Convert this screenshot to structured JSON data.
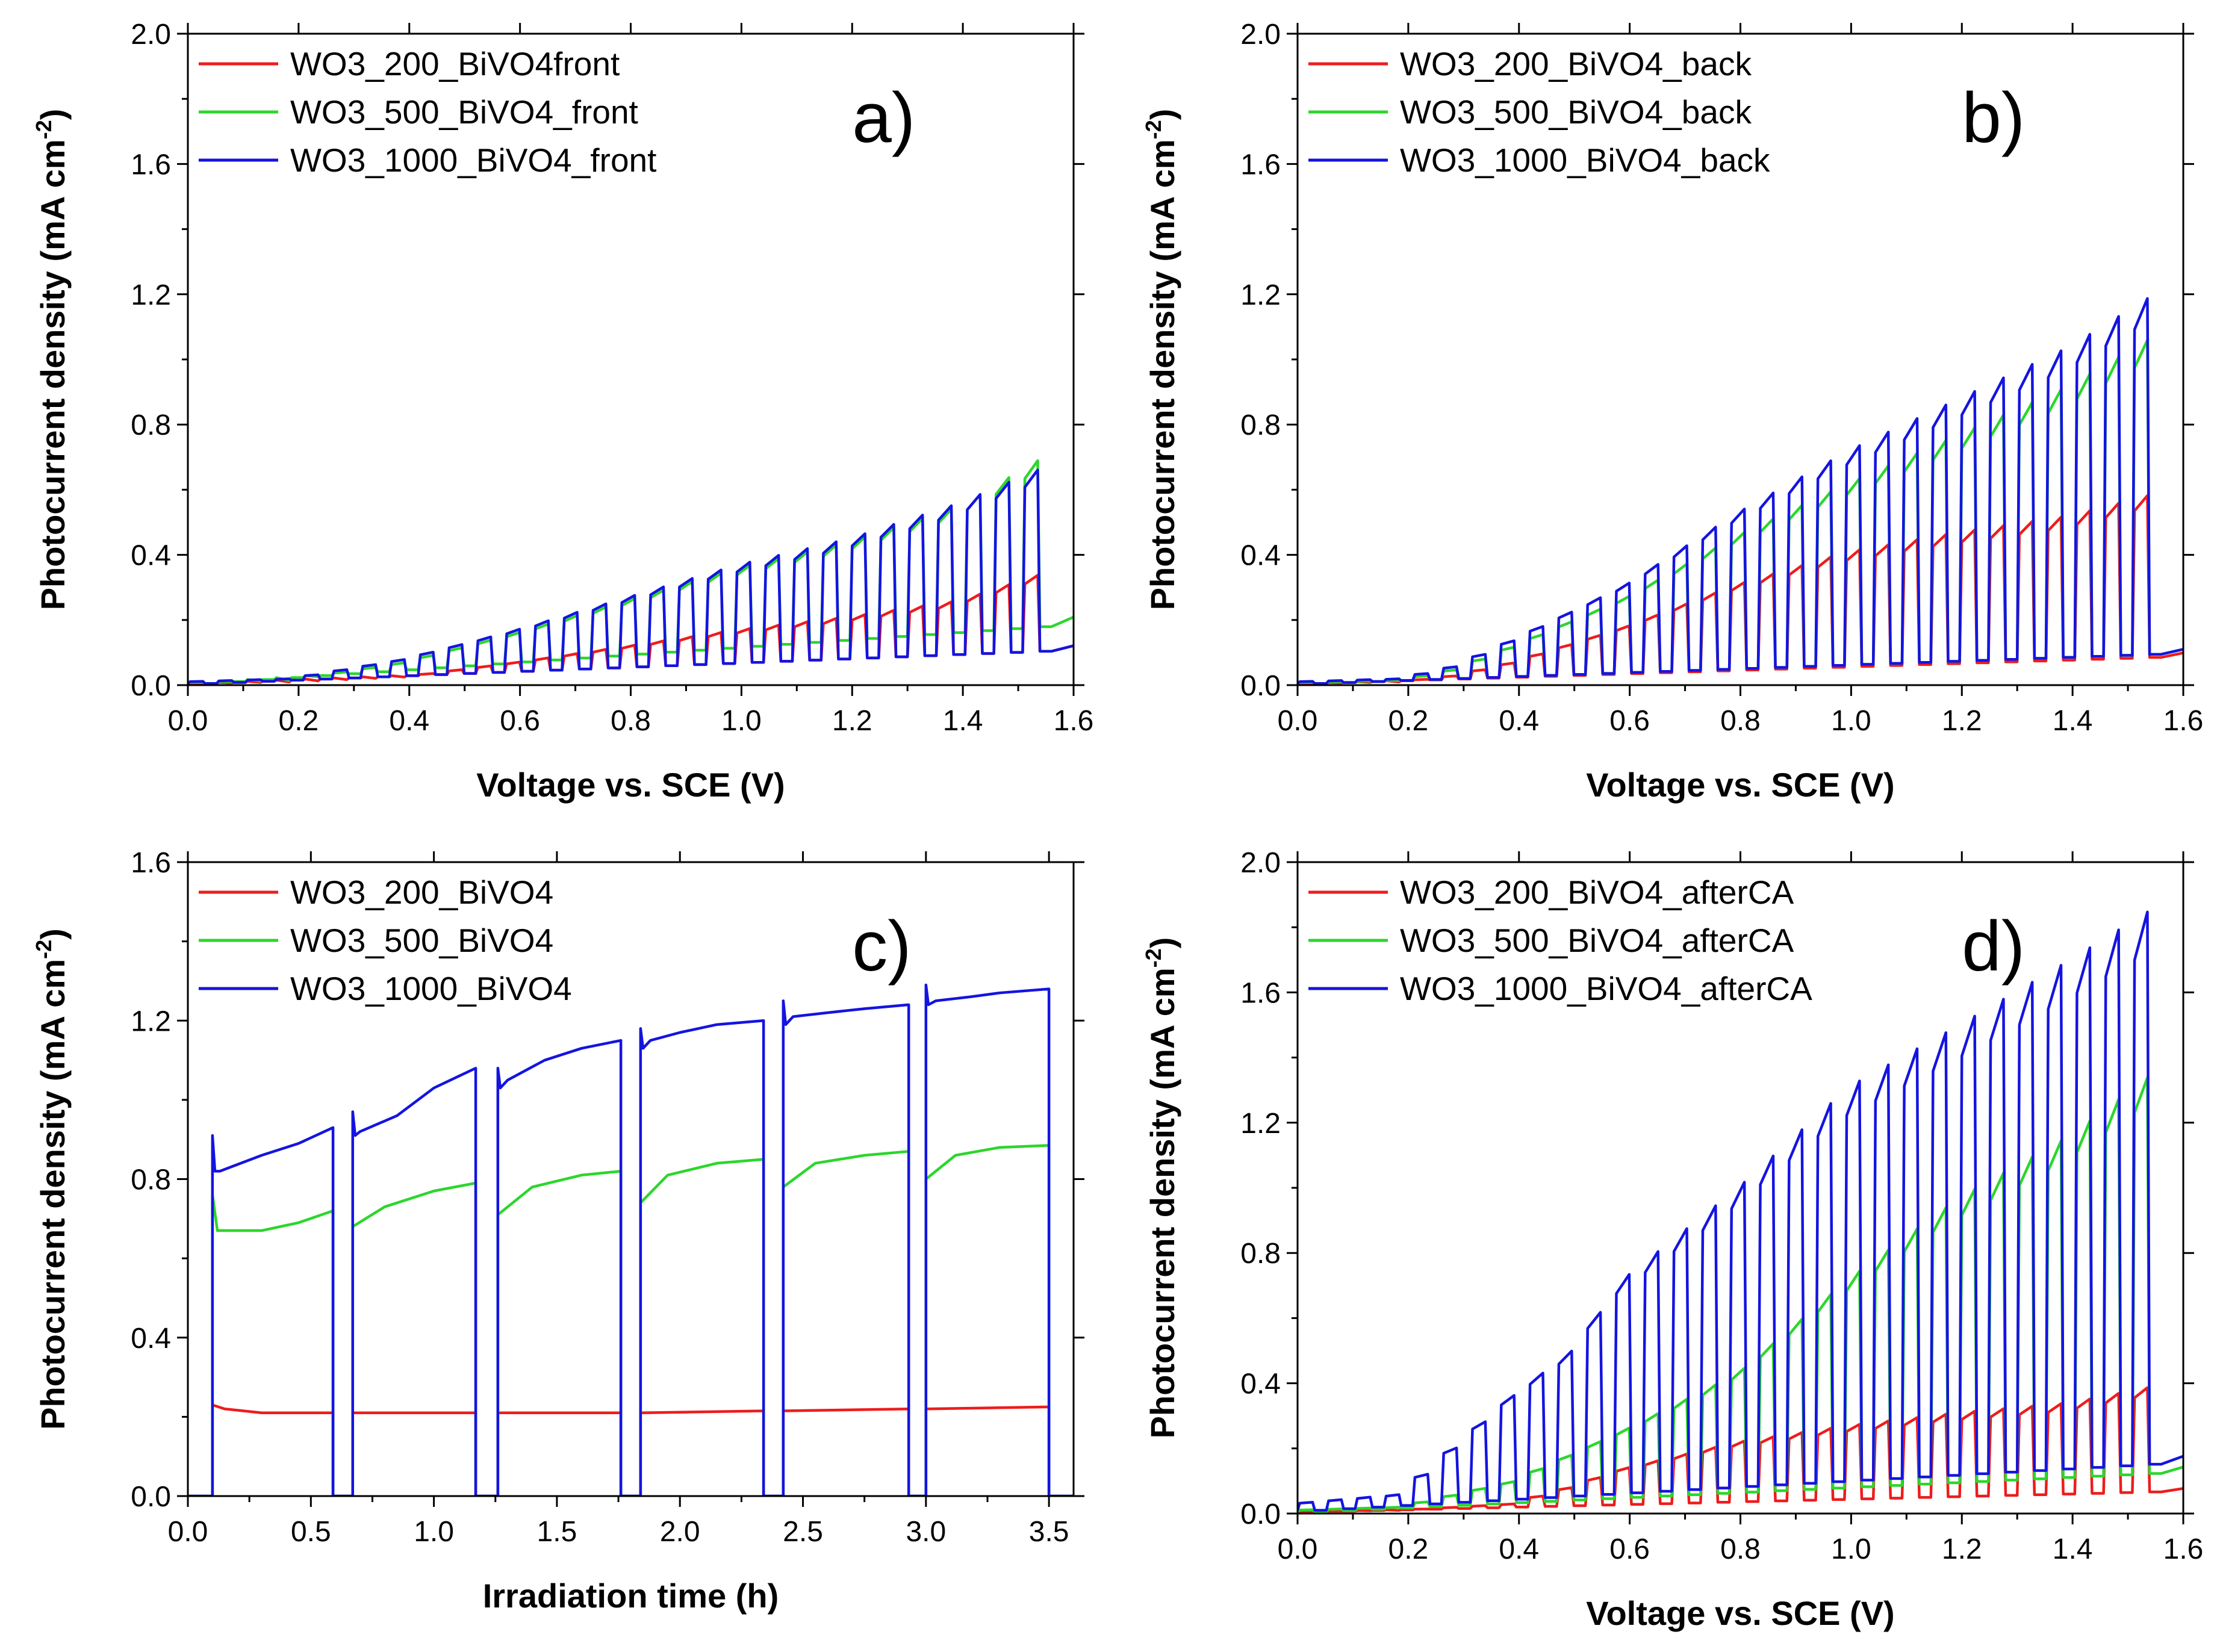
{
  "colors": {
    "red": "#ee1c1c",
    "green": "#2cd62c",
    "blue": "#1414e0",
    "axis": "#000000"
  },
  "chart_data": [
    {
      "id": "a",
      "type": "line",
      "panel_label": "a)",
      "xlabel": "Voltage vs. SCE (V)",
      "ylabel": "Photocurrent density (mA cm",
      "ylabel_sup": "-2",
      "ylabel_close": ")",
      "xlim": [
        0,
        1.6
      ],
      "ylim": [
        0,
        2.0
      ],
      "xticks": [
        0.0,
        0.2,
        0.4,
        0.6,
        0.8,
        1.0,
        1.2,
        1.4,
        1.6
      ],
      "xtick_labels": [
        "0.0",
        "0.2",
        "0.4",
        "0.6",
        "0.8",
        "1.0",
        "1.2",
        "1.4",
        "1.6"
      ],
      "yticks": [
        0.0,
        0.4,
        0.8,
        1.2,
        1.6,
        2.0
      ],
      "ytick_labels": [
        "0.0",
        "0.4",
        "0.8",
        "1.2",
        "1.6",
        "2.0"
      ],
      "legend_position": "top-left",
      "pattern": "chopped",
      "chop": {
        "start": 0.0,
        "period": 0.052,
        "on_fraction": 0.6,
        "end": 1.6
      },
      "series": [
        {
          "name": "WO3_200_BiVO4front",
          "color": "red",
          "envelope": {
            "x": [
              0.0,
              0.2,
              0.4,
              0.6,
              0.8,
              1.0,
              1.2,
              1.4,
              1.58
            ],
            "y": [
              0.005,
              0.01,
              0.025,
              0.07,
              0.12,
              0.17,
              0.21,
              0.26,
              0.36
            ]
          },
          "dark": 0.005,
          "dark_end": 0.11
        },
        {
          "name": "WO3_500_BiVO4_front",
          "color": "green",
          "envelope": {
            "x": [
              0.0,
              0.2,
              0.4,
              0.6,
              0.8,
              1.0,
              1.2,
              1.4,
              1.58
            ],
            "y": [
              0.008,
              0.015,
              0.07,
              0.16,
              0.26,
              0.36,
              0.44,
              0.55,
              0.73
            ]
          },
          "dark": 0.005,
          "dark_end": 0.19
        },
        {
          "name": "WO3_1000_BiVO4_front",
          "color": "blue",
          "envelope": {
            "x": [
              0.0,
              0.2,
              0.4,
              0.6,
              0.8,
              1.0,
              1.2,
              1.4,
              1.58
            ],
            "y": [
              0.01,
              0.02,
              0.08,
              0.17,
              0.27,
              0.37,
              0.45,
              0.56,
              0.69
            ]
          },
          "dark": 0.005,
          "dark_end": 0.11
        }
      ]
    },
    {
      "id": "b",
      "type": "line",
      "panel_label": "b)",
      "xlabel": "Voltage vs. SCE (V)",
      "ylabel": "Photocurrent density (mA cm",
      "ylabel_sup": "-2",
      "ylabel_close": ")",
      "xlim": [
        0,
        1.6
      ],
      "ylim": [
        0,
        2.0
      ],
      "xticks": [
        0.0,
        0.2,
        0.4,
        0.6,
        0.8,
        1.0,
        1.2,
        1.4,
        1.6
      ],
      "xtick_labels": [
        "0.0",
        "0.2",
        "0.4",
        "0.6",
        "0.8",
        "1.0",
        "1.2",
        "1.4",
        "1.6"
      ],
      "yticks": [
        0.0,
        0.4,
        0.8,
        1.2,
        1.6,
        2.0
      ],
      "ytick_labels": [
        "0.0",
        "0.4",
        "0.8",
        "1.2",
        "1.6",
        "2.0"
      ],
      "legend_position": "top-left",
      "pattern": "chopped",
      "chop": {
        "start": 0.0,
        "period": 0.052,
        "on_fraction": 0.6,
        "end": 1.6
      },
      "series": [
        {
          "name": "WO3_200_BiVO4_back",
          "color": "red",
          "envelope": {
            "x": [
              0.0,
              0.2,
              0.3,
              0.4,
              0.6,
              0.8,
              1.0,
              1.2,
              1.4,
              1.58
            ],
            "y": [
              0.005,
              0.01,
              0.03,
              0.07,
              0.18,
              0.31,
              0.41,
              0.47,
              0.52,
              0.6
            ]
          },
          "dark": 0.005,
          "dark_end": 0.09
        },
        {
          "name": "WO3_500_BiVO4_back",
          "color": "green",
          "envelope": {
            "x": [
              0.0,
              0.2,
              0.3,
              0.4,
              0.6,
              0.8,
              1.0,
              1.2,
              1.4,
              1.58
            ],
            "y": [
              0.008,
              0.015,
              0.05,
              0.12,
              0.27,
              0.46,
              0.62,
              0.77,
              0.92,
              1.1
            ]
          },
          "dark": 0.005,
          "dark_end": 0.1
        },
        {
          "name": "WO3_1000_BiVO4_back",
          "color": "blue",
          "envelope": {
            "x": [
              0.0,
              0.2,
              0.3,
              0.4,
              0.6,
              0.8,
              1.0,
              1.2,
              1.4,
              1.58
            ],
            "y": [
              0.01,
              0.02,
              0.06,
              0.14,
              0.31,
              0.53,
              0.72,
              0.88,
              1.04,
              1.23
            ]
          },
          "dark": 0.005,
          "dark_end": 0.1
        }
      ]
    },
    {
      "id": "c",
      "type": "line",
      "panel_label": "c)",
      "xlabel": "Irradiation time (h)",
      "ylabel": "Photocurrent density (mA cm",
      "ylabel_sup": "-2",
      "ylabel_close": ")",
      "xlim": [
        0,
        3.6
      ],
      "ylim": [
        0,
        1.6
      ],
      "xticks": [
        0.0,
        0.5,
        1.0,
        1.5,
        2.0,
        2.5,
        3.0,
        3.5
      ],
      "xtick_labels": [
        "0.0",
        "0.5",
        "1.0",
        "1.5",
        "2.0",
        "2.5",
        "3.0",
        "3.5"
      ],
      "yticks": [
        0.0,
        0.4,
        0.8,
        1.2,
        1.6
      ],
      "ytick_labels": [
        "0.0",
        "0.4",
        "0.8",
        "1.2",
        "1.6"
      ],
      "legend_position": "top-left",
      "pattern": "segments",
      "off_level": 0.0,
      "series": [
        {
          "name": "WO3_200_BiVO4",
          "color": "red",
          "segments": [
            {
              "t": [
                0.1,
                0.15,
                0.3,
                0.59
              ],
              "y": [
                0.23,
                0.22,
                0.21,
                0.21
              ]
            },
            {
              "t": [
                0.67,
                1.17
              ],
              "y": [
                0.21,
                0.21
              ]
            },
            {
              "t": [
                1.26,
                1.76
              ],
              "y": [
                0.21,
                0.21
              ]
            },
            {
              "t": [
                1.84,
                2.34
              ],
              "y": [
                0.21,
                0.215
              ]
            },
            {
              "t": [
                2.42,
                2.93
              ],
              "y": [
                0.215,
                0.22
              ]
            },
            {
              "t": [
                3.0,
                3.5
              ],
              "y": [
                0.22,
                0.225
              ]
            }
          ]
        },
        {
          "name": "WO3_500_BiVO4",
          "color": "green",
          "segments": [
            {
              "t": [
                0.1,
                0.12,
                0.3,
                0.45,
                0.59
              ],
              "y": [
                0.76,
                0.67,
                0.67,
                0.69,
                0.72
              ]
            },
            {
              "t": [
                0.67,
                0.8,
                1.0,
                1.17
              ],
              "y": [
                0.68,
                0.73,
                0.77,
                0.79
              ]
            },
            {
              "t": [
                1.26,
                1.4,
                1.6,
                1.76
              ],
              "y": [
                0.71,
                0.78,
                0.81,
                0.82
              ]
            },
            {
              "t": [
                1.84,
                1.95,
                2.15,
                2.34
              ],
              "y": [
                0.74,
                0.81,
                0.84,
                0.85
              ]
            },
            {
              "t": [
                2.42,
                2.55,
                2.75,
                2.93
              ],
              "y": [
                0.78,
                0.84,
                0.86,
                0.87
              ]
            },
            {
              "t": [
                3.0,
                3.12,
                3.3,
                3.5
              ],
              "y": [
                0.8,
                0.86,
                0.88,
                0.885
              ]
            }
          ]
        },
        {
          "name": "WO3_1000_BiVO4",
          "color": "blue",
          "segments": [
            {
              "t": [
                0.1,
                0.11,
                0.13,
                0.3,
                0.45,
                0.59
              ],
              "y": [
                0.91,
                0.82,
                0.82,
                0.86,
                0.89,
                0.93
              ]
            },
            {
              "t": [
                0.67,
                0.68,
                0.7,
                0.85,
                1.0,
                1.17
              ],
              "y": [
                0.97,
                0.91,
                0.92,
                0.96,
                1.03,
                1.08
              ]
            },
            {
              "t": [
                1.26,
                1.27,
                1.3,
                1.45,
                1.6,
                1.76
              ],
              "y": [
                1.08,
                1.03,
                1.05,
                1.1,
                1.13,
                1.15
              ]
            },
            {
              "t": [
                1.84,
                1.85,
                1.88,
                2.0,
                2.15,
                2.34
              ],
              "y": [
                1.18,
                1.13,
                1.15,
                1.17,
                1.19,
                1.2
              ]
            },
            {
              "t": [
                2.42,
                2.43,
                2.46,
                2.6,
                2.75,
                2.93
              ],
              "y": [
                1.25,
                1.19,
                1.21,
                1.22,
                1.23,
                1.24
              ]
            },
            {
              "t": [
                3.0,
                3.01,
                3.04,
                3.18,
                3.3,
                3.5
              ],
              "y": [
                1.29,
                1.24,
                1.25,
                1.26,
                1.27,
                1.28
              ]
            }
          ]
        }
      ]
    },
    {
      "id": "d",
      "type": "line",
      "panel_label": "d)",
      "xlabel": "Voltage vs. SCE (V)",
      "ylabel": "Photocurrent density (mA cm",
      "ylabel_sup": "-2",
      "ylabel_close": ")",
      "xlim": [
        0,
        1.6
      ],
      "ylim": [
        0,
        2.0
      ],
      "xticks": [
        0.0,
        0.2,
        0.4,
        0.6,
        0.8,
        1.0,
        1.2,
        1.4,
        1.6
      ],
      "xtick_labels": [
        "0.0",
        "0.2",
        "0.4",
        "0.6",
        "0.8",
        "1.0",
        "1.2",
        "1.4",
        "1.6"
      ],
      "yticks": [
        0.0,
        0.4,
        0.8,
        1.2,
        1.6,
        2.0
      ],
      "ytick_labels": [
        "0.0",
        "0.4",
        "0.8",
        "1.2",
        "1.6",
        "2.0"
      ],
      "legend_position": "top-left",
      "pattern": "chopped",
      "chop": {
        "start": 0.0,
        "period": 0.052,
        "on_fraction": 0.6,
        "end": 1.6
      },
      "series": [
        {
          "name": "WO3_200_BiVO4_afterCA",
          "color": "red",
          "envelope": {
            "x": [
              0.0,
              0.2,
              0.4,
              0.5,
              0.6,
              0.8,
              1.0,
              1.2,
              1.4,
              1.58
            ],
            "y": [
              0.005,
              0.01,
              0.03,
              0.08,
              0.14,
              0.22,
              0.27,
              0.31,
              0.34,
              0.4
            ]
          },
          "dark": 0.005,
          "dark_end": 0.07
        },
        {
          "name": "WO3_500_BiVO4_afterCA",
          "color": "green",
          "envelope": {
            "x": [
              0.0,
              0.2,
              0.4,
              0.5,
              0.6,
              0.8,
              1.0,
              1.2,
              1.4,
              1.58
            ],
            "y": [
              0.01,
              0.02,
              0.1,
              0.18,
              0.26,
              0.43,
              0.72,
              0.97,
              1.16,
              1.39
            ]
          },
          "dark": 0.005,
          "dark_end": 0.13
        },
        {
          "name": "WO3_1000_BiVO4_afterCA",
          "color": "blue",
          "envelope": {
            "x": [
              0.0,
              0.2,
              0.4,
              0.5,
              0.6,
              0.8,
              1.0,
              1.2,
              1.4,
              1.58
            ],
            "y": [
              0.03,
              0.06,
              0.37,
              0.5,
              0.73,
              1.0,
              1.31,
              1.5,
              1.7,
              1.89
            ]
          },
          "dark": 0.01,
          "dark_end": 0.16
        }
      ]
    }
  ]
}
